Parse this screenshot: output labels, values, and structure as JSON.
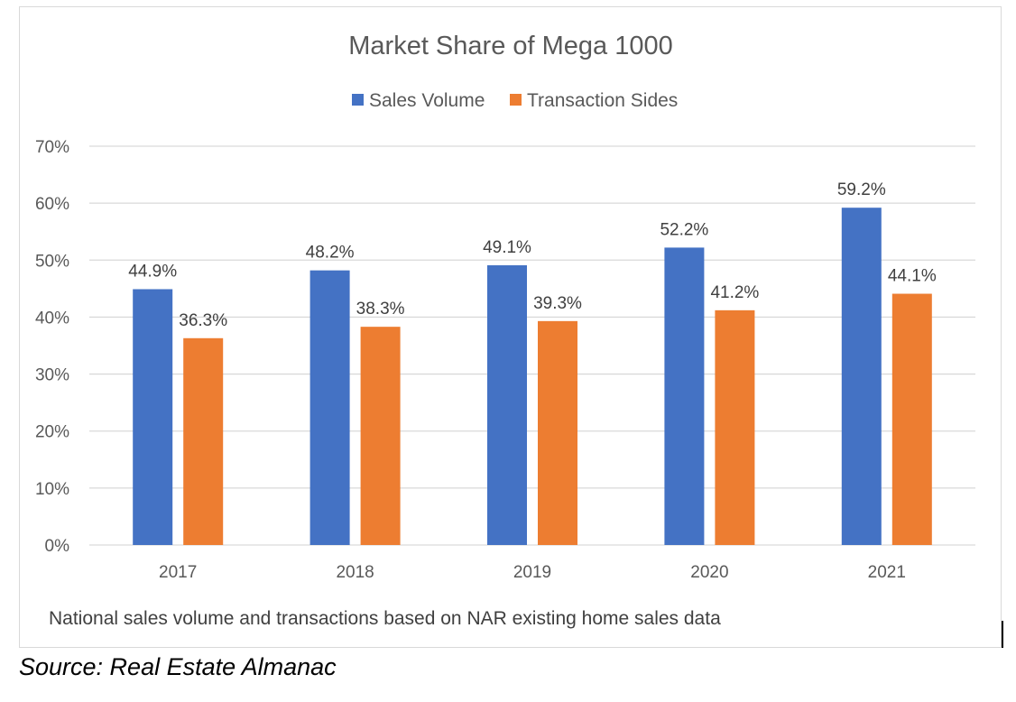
{
  "chart_data": {
    "type": "bar",
    "title": "Market Share of Mega 1000",
    "categories": [
      "2017",
      "2018",
      "2019",
      "2020",
      "2021"
    ],
    "series": [
      {
        "name": "Sales Volume",
        "color": "#4472c4",
        "values": [
          44.9,
          48.2,
          49.1,
          52.2,
          59.2
        ],
        "labels": [
          "44.9%",
          "48.2%",
          "49.1%",
          "52.2%",
          "59.2%"
        ]
      },
      {
        "name": "Transaction Sides",
        "color": "#ed7d31",
        "values": [
          36.3,
          38.3,
          39.3,
          41.2,
          44.1
        ],
        "labels": [
          "36.3%",
          "38.3%",
          "39.3%",
          "41.2%",
          "44.1%"
        ]
      }
    ],
    "ylim": [
      0,
      70
    ],
    "y_ticks": [
      "0%",
      "10%",
      "20%",
      "30%",
      "40%",
      "50%",
      "60%",
      "70%"
    ],
    "grid": true,
    "legend_position": "top",
    "xlabel": "",
    "ylabel": ""
  },
  "footnote": "National sales volume and transactions based on NAR existing home sales data",
  "source": "Source: Real Estate Almanac"
}
